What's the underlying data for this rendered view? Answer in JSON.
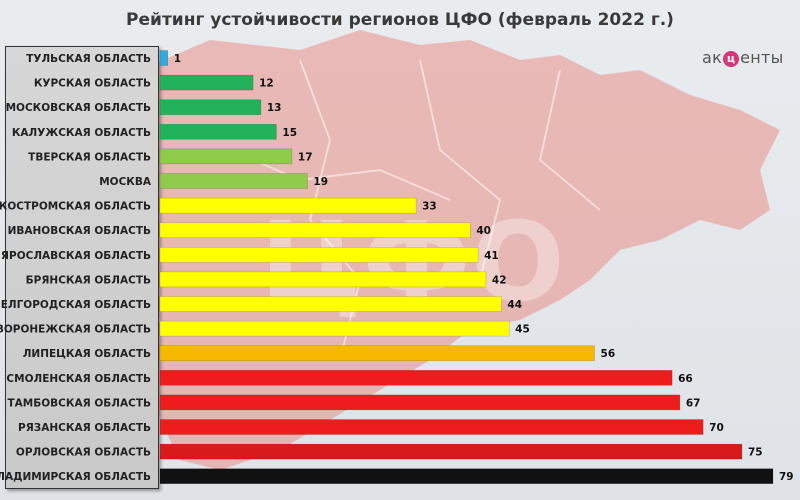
{
  "title": "Рейтинг устойчивости регионов ЦФО (февраль 2022 г.)",
  "logo": {
    "before": "ак",
    "mark": "ц",
    "after": "енты"
  },
  "background_watermark": "ЦФО",
  "chart_data": {
    "type": "bar",
    "orientation": "horizontal",
    "title": "Рейтинг устойчивости регионов ЦФО (февраль 2022 г.)",
    "xlabel": "",
    "ylabel": "",
    "xlim": [
      0,
      79
    ],
    "grid": false,
    "legend": "none",
    "categories": [
      "ТУЛЬСКАЯ ОБЛАСТЬ",
      "КУРСКАЯ ОБЛАСТЬ",
      "МОСКОВСКАЯ ОБЛАСТЬ",
      "КАЛУЖСКАЯ ОБЛАСТЬ",
      "ТВЕРСКАЯ ОБЛАСТЬ",
      "МОСКВА",
      "КОСТРОМСКАЯ ОБЛАСТЬ",
      "ИВАНОВСКАЯ ОБЛАСТЬ",
      "ЯРОСЛАВСКАЯ ОБЛАСТЬ",
      "БРЯНСКАЯ ОБЛАСТЬ",
      "БЕЛГОРОДСКАЯ ОБЛАСТЬ",
      "ВОРОНЕЖСКАЯ ОБЛАСТЬ",
      "ЛИПЕЦКАЯ ОБЛАСТЬ",
      "СМОЛЕНСКАЯ ОБЛАСТЬ",
      "ТАМБОВСКАЯ ОБЛАСТЬ",
      "РЯЗАНСКАЯ ОБЛАСТЬ",
      "ОРЛОВСКАЯ ОБЛАСТЬ",
      "ВЛАДИМИРСКАЯ ОБЛАСТЬ"
    ],
    "values": [
      1,
      12,
      13,
      15,
      17,
      19,
      33,
      40,
      41,
      42,
      44,
      45,
      56,
      66,
      67,
      70,
      75,
      79
    ],
    "colors": [
      "#2eaadc",
      "#22b35a",
      "#22b35a",
      "#22b35a",
      "#8fca4a",
      "#8fca4a",
      "#ffff00",
      "#ffff00",
      "#ffff00",
      "#ffff00",
      "#ffff00",
      "#ffff00",
      "#f6b800",
      "#ee1c1c",
      "#ee1c1c",
      "#ee1c1c",
      "#d91a1a",
      "#111111"
    ]
  }
}
